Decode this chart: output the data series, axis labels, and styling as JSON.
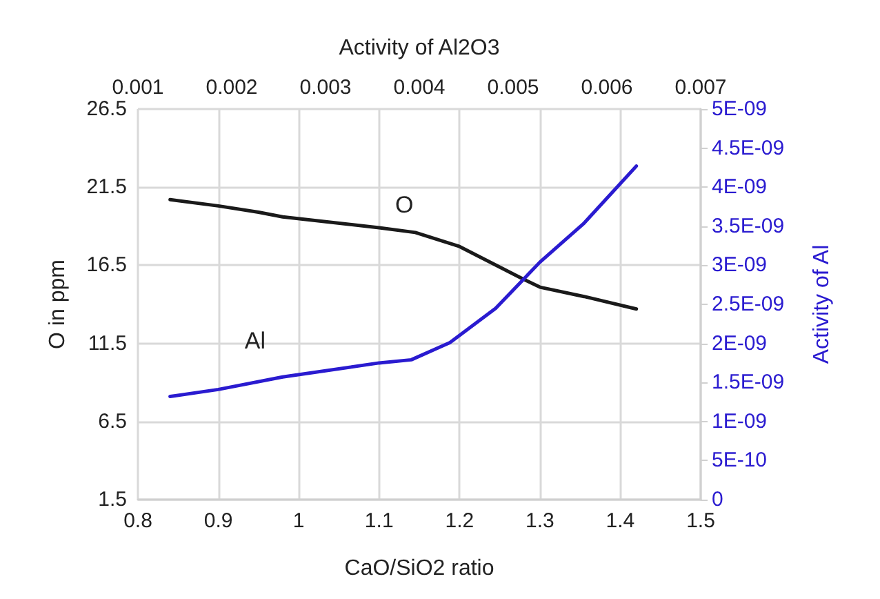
{
  "chart_data": {
    "type": "line",
    "xlabel": "CaO/SiO2 ratio",
    "ylabel": "O in ppm",
    "y2label": "Activity of Al",
    "x2label": "Activity of Al2O3",
    "xlim": [
      0.8,
      1.5
    ],
    "xticks": [
      0.8,
      0.9,
      1,
      1.1,
      1.2,
      1.3,
      1.4,
      1.5
    ],
    "x2lim": [
      0.001,
      0.007
    ],
    "x2ticks": [
      0.001,
      0.002,
      0.003,
      0.004,
      0.005,
      0.006,
      0.007
    ],
    "ylim": [
      1.5,
      26.5
    ],
    "yticks": [
      1.5,
      6.5,
      11.5,
      16.5,
      21.5,
      26.5
    ],
    "y2lim": [
      0,
      5e-09
    ],
    "y2ticks": [
      0,
      {
        "value": 5e-10,
        "label": "5E-10"
      },
      {
        "value": 1e-09,
        "label": "1E-09"
      },
      {
        "value": 1.5e-09,
        "label": "1.5E-09"
      },
      {
        "value": 2e-09,
        "label": "2E-09"
      },
      {
        "value": 2.5e-09,
        "label": "2.5E-09"
      },
      {
        "value": 3e-09,
        "label": "3E-09"
      },
      {
        "value": 3.5e-09,
        "label": "3.5E-09"
      },
      {
        "value": 4e-09,
        "label": "4E-09"
      },
      {
        "value": 4.5e-09,
        "label": "4.5E-09"
      },
      {
        "value": 5e-09,
        "label": "5E-09"
      }
    ],
    "grid": true,
    "legend": false,
    "marker": "none",
    "line_style": "solid",
    "series": [
      {
        "name": "O",
        "color": "#1a1a1a",
        "x": [
          0.84,
          0.9,
          0.95,
          0.98,
          1.1,
          1.145,
          1.2,
          1.276,
          1.3,
          1.355,
          1.42
        ],
        "values": [
          20.7,
          20.3,
          19.9,
          19.6,
          18.9,
          18.6,
          17.7,
          15.7,
          15.1,
          14.5,
          13.7
        ]
      },
      {
        "name": "Al",
        "color": "#2a1bd0",
        "axis": "y2",
        "x": [
          0.84,
          0.9,
          0.98,
          1.1,
          1.14,
          1.188,
          1.245,
          1.3,
          1.355,
          1.42
        ],
        "values": [
          1.32e-09,
          1.41e-09,
          1.57e-09,
          1.75e-09,
          1.79e-09,
          2.01e-09,
          2.45e-09,
          3.04e-09,
          3.54e-09,
          4.27e-09
        ]
      }
    ]
  }
}
